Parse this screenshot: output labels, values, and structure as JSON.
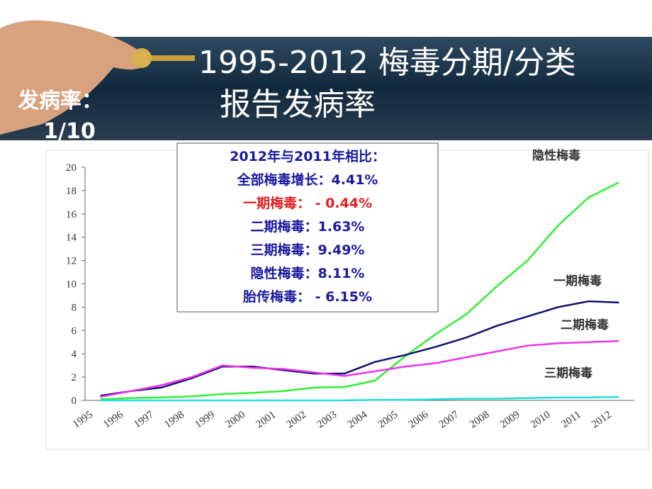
{
  "slide_title": [
    "1995-2012 梅毒分期/分类",
    "报告发病率"
  ],
  "side_label": [
    "发病率：",
    "1/10"
  ],
  "chart_data": {
    "type": "line",
    "categories": [
      "1995",
      "1996",
      "1997",
      "1998",
      "1999",
      "2000",
      "2001",
      "2002",
      "2003",
      "2004",
      "2005",
      "2006",
      "2007",
      "2008",
      "2009",
      "2010",
      "2011",
      "2012"
    ],
    "ylim": [
      0,
      20
    ],
    "yticks": [
      0,
      2,
      4,
      6,
      8,
      10,
      12,
      14,
      16,
      18,
      20
    ],
    "series": [
      {
        "name": "隐性梅毒",
        "color": "#33ee33",
        "values": [
          0.1,
          0.2,
          0.25,
          0.35,
          0.55,
          0.65,
          0.8,
          1.1,
          1.15,
          1.7,
          3.8,
          5.7,
          7.4,
          9.8,
          12.0,
          15.0,
          17.4,
          18.7
        ]
      },
      {
        "name": "一期梅毒",
        "color": "#12126e",
        "values": [
          0.4,
          0.8,
          1.1,
          1.9,
          2.9,
          2.9,
          2.6,
          2.3,
          2.3,
          3.3,
          3.9,
          4.6,
          5.4,
          6.4,
          7.2,
          8.0,
          8.5,
          8.4
        ]
      },
      {
        "name": "二期梅毒",
        "color": "#ee33ee",
        "values": [
          0.3,
          0.8,
          1.3,
          2.0,
          3.0,
          2.8,
          2.7,
          2.4,
          2.1,
          2.5,
          2.9,
          3.2,
          3.7,
          4.2,
          4.7,
          4.9,
          5.0,
          5.1
        ]
      },
      {
        "name": "三期梅毒",
        "color": "#22dddd",
        "values": [
          0,
          0,
          0,
          0,
          0,
          0,
          0,
          0,
          0,
          0.05,
          0.05,
          0.1,
          0.15,
          0.15,
          0.2,
          0.25,
          0.25,
          0.3
        ]
      }
    ],
    "annotation": {
      "lines": [
        {
          "text": "2012年与2011年相比：",
          "color": "#1a1aa0"
        },
        {
          "text": "全部梅毒增长：4.41%",
          "color": "#1a1aa0"
        },
        {
          "text": "一期梅毒：  - 0.44%",
          "color": "#e02020"
        },
        {
          "text": "二期梅毒：1.63%",
          "color": "#1a1aa0"
        },
        {
          "text": "三期梅毒：9.49%",
          "color": "#1a1aa0"
        },
        {
          "text": "隐性梅毒：8.11%",
          "color": "#1a1aa0"
        },
        {
          "text": "胎传梅毒：  - 6.15%",
          "color": "#1a1aa0"
        }
      ]
    }
  }
}
